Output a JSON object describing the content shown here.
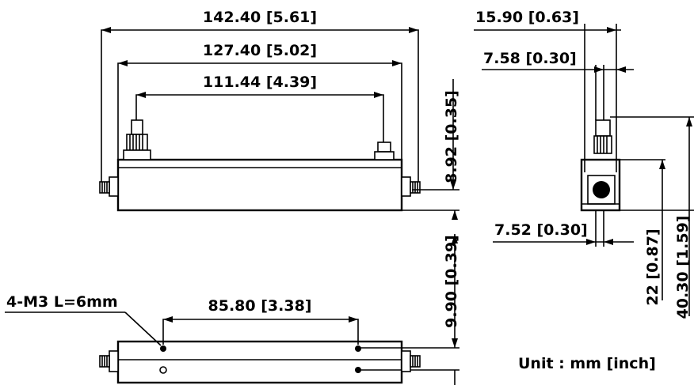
{
  "dimensions": {
    "overall_length": "142.40 [5.61]",
    "housing_length": "127.40 [5.02]",
    "connector_span": "111.44 [4.39]",
    "connector_height": "8.92 [0.35]",
    "side_width": "15.90 [0.63]",
    "side_offset_top": "7.58 [0.30]",
    "side_offset_bottom": "7.52 [0.30]",
    "side_height_inner": "22 [0.87]",
    "side_height_total": "40.30 [1.59]",
    "mount_height": "9.90 [0.39]",
    "hole_spacing": "85.80 [3.38]"
  },
  "callouts": {
    "mount_holes": "4-M3 L=6mm"
  },
  "unit_note": "Unit : mm [inch]"
}
